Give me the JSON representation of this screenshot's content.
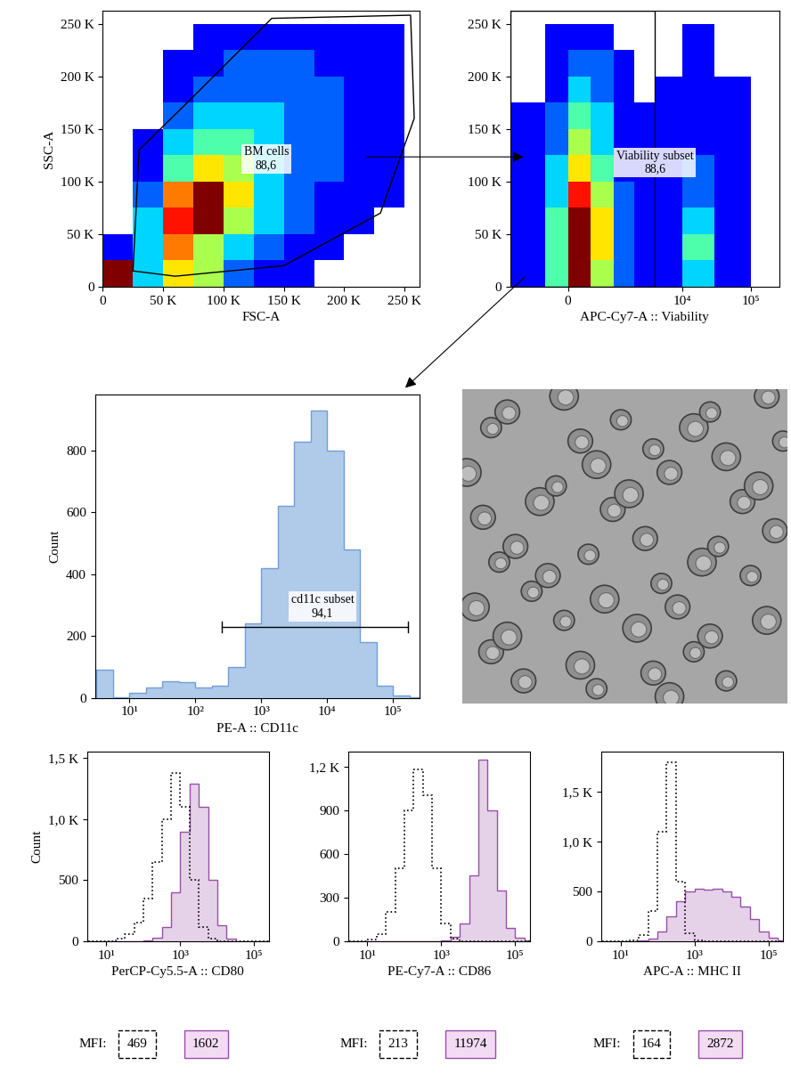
{
  "chart_data": [
    {
      "type": "density_scatter",
      "xlabel": "FSC-A",
      "ylabel": "SSC-A",
      "xlim": [
        0,
        262144
      ],
      "ylim": [
        0,
        262144
      ],
      "xticks": [
        0,
        {
          "value": 50000,
          "label": "50 K"
        },
        {
          "value": 100000,
          "label": "100 K"
        },
        {
          "value": 150000,
          "label": "150 K"
        },
        {
          "value": 200000,
          "label": "200 K"
        },
        {
          "value": 250000,
          "label": "250 K"
        }
      ],
      "yticks": [
        0,
        {
          "value": 50000,
          "label": "50 K"
        },
        {
          "value": 100000,
          "label": "100 K"
        },
        {
          "value": 150000,
          "label": "150 K"
        },
        {
          "value": 200000,
          "label": "200 K"
        },
        {
          "value": 250000,
          "label": "250 K"
        }
      ],
      "density": {
        "x_edges": [
          0,
          25000,
          50000,
          75000,
          100000,
          125000,
          150000,
          175000,
          200000,
          225000,
          250000
        ],
        "y_edges": [
          0,
          25000,
          50000,
          75000,
          100000,
          125000,
          150000,
          175000,
          200000,
          225000,
          250000
        ],
        "cells": [
          [
            9,
            3,
            6,
            5,
            2,
            1,
            1,
            0,
            0,
            0
          ],
          [
            1,
            3,
            7,
            5,
            3,
            2,
            1,
            1,
            0,
            0
          ],
          [
            0,
            3,
            8,
            9,
            5,
            3,
            2,
            1,
            1,
            0
          ],
          [
            0,
            2,
            7,
            9,
            6,
            3,
            2,
            1,
            1,
            1
          ],
          [
            0,
            1,
            4,
            6,
            5,
            3,
            2,
            2,
            1,
            1
          ],
          [
            0,
            1,
            3,
            4,
            4,
            3,
            2,
            2,
            1,
            1
          ],
          [
            0,
            0,
            2,
            3,
            3,
            3,
            2,
            2,
            1,
            1
          ],
          [
            0,
            0,
            1,
            2,
            2,
            2,
            2,
            2,
            1,
            1
          ],
          [
            0,
            0,
            1,
            1,
            2,
            2,
            2,
            1,
            1,
            1
          ],
          [
            0,
            0,
            0,
            1,
            1,
            1,
            1,
            1,
            1,
            1
          ]
        ]
      },
      "gate": {
        "label": "BM cells",
        "percent": {
          "value": 88.6,
          "label": "88,6"
        },
        "polygon": [
          [
            25000,
            15000
          ],
          [
            30000,
            130000
          ],
          [
            70000,
            175000
          ],
          [
            140000,
            255000
          ],
          [
            255000,
            258000
          ],
          [
            258000,
            160000
          ],
          [
            230000,
            70000
          ],
          [
            150000,
            20000
          ],
          [
            60000,
            10000
          ]
        ]
      }
    },
    {
      "type": "density_scatter",
      "xlabel": "APC-Cy7-A :: Viability",
      "log": "x",
      "xlim": [
        -1500,
        262144
      ],
      "ylim": [
        0,
        262144
      ],
      "xticks": [
        0,
        {
          "value": 10000,
          "label": "10⁴"
        },
        {
          "value": 100000,
          "label": "10⁵"
        }
      ],
      "yticks": [
        0,
        {
          "value": 50000,
          "label": "50 K"
        },
        {
          "value": 100000,
          "label": "100 K"
        },
        {
          "value": 150000,
          "label": "150 K"
        },
        {
          "value": 200000,
          "label": "200 K"
        },
        {
          "value": 250000,
          "label": "250 K"
        }
      ],
      "density": {
        "x_edges": [
          -1500,
          -500,
          0,
          500,
          1000,
          2000,
          4000,
          10000,
          30000,
          100000,
          262144
        ],
        "y_edges": [
          0,
          25000,
          50000,
          75000,
          100000,
          125000,
          150000,
          175000,
          200000,
          225000,
          250000
        ],
        "cells": [
          [
            1,
            4,
            9,
            5,
            2,
            1,
            1,
            3,
            1,
            0
          ],
          [
            1,
            4,
            9,
            6,
            2,
            1,
            1,
            4,
            1,
            0
          ],
          [
            1,
            4,
            9,
            6,
            2,
            1,
            1,
            3,
            1,
            0
          ],
          [
            1,
            3,
            8,
            5,
            2,
            1,
            1,
            2,
            1,
            0
          ],
          [
            1,
            3,
            6,
            4,
            1,
            1,
            1,
            2,
            1,
            0
          ],
          [
            1,
            2,
            5,
            3,
            1,
            1,
            1,
            1,
            1,
            0
          ],
          [
            1,
            2,
            4,
            3,
            1,
            1,
            1,
            1,
            1,
            0
          ],
          [
            0,
            1,
            3,
            2,
            1,
            0,
            1,
            1,
            1,
            0
          ],
          [
            0,
            1,
            2,
            2,
            1,
            0,
            0,
            1,
            0,
            0
          ],
          [
            0,
            1,
            1,
            1,
            0,
            0,
            0,
            1,
            0,
            0
          ]
        ]
      },
      "gate": {
        "label": "Viability subset",
        "percent": {
          "value": 88.6,
          "label": "88,6"
        },
        "x_range": [
          -1500,
          4000
        ]
      }
    },
    {
      "type": "histogram",
      "xlabel": "PE-A :: CD11c",
      "ylabel": "Count",
      "log": "x",
      "color": "#6f9fd8",
      "xlim": [
        3,
        250000
      ],
      "ylim": [
        0,
        980
      ],
      "xticks": [
        {
          "value": 10,
          "label": "10¹"
        },
        {
          "value": 100,
          "label": "10²"
        },
        {
          "value": 1000,
          "label": "10³"
        },
        {
          "value": 10000,
          "label": "10⁴"
        },
        {
          "value": 100000,
          "label": "10⁵"
        }
      ],
      "yticks": [
        0,
        200,
        400,
        600,
        800
      ],
      "bins": [
        3.16,
        5.62,
        10,
        17.8,
        31.6,
        56.2,
        100,
        178,
        316,
        562,
        1000,
        1778,
        3162,
        5623,
        10000,
        17783,
        31623,
        56234,
        100000,
        177828,
        316228
      ],
      "values": [
        90,
        3,
        15,
        35,
        55,
        50,
        35,
        40,
        100,
        240,
        420,
        620,
        830,
        930,
        800,
        480,
        180,
        40,
        8,
        2
      ],
      "gate": {
        "label": "cd11c subset",
        "percent": {
          "value": 94.1,
          "label": "94,1"
        },
        "x_range": [
          250,
          170000
        ],
        "y": 230
      }
    },
    {
      "type": "histogram_overlay",
      "xlabel": "PerCP-Cy5.5-A :: CD80",
      "ylabel": "Count",
      "log": "x",
      "mfi_label": "MFI:",
      "xlim": [
        3,
        250000
      ],
      "ylim": [
        0,
        1550
      ],
      "xticks": [
        {
          "value": 10,
          "label": "10¹"
        },
        {
          "value": 1000,
          "label": "10³"
        },
        {
          "value": 100000,
          "label": "10⁵"
        }
      ],
      "yticks": [
        0,
        500,
        {
          "value": 1000,
          "label": "1,0 K"
        },
        {
          "value": 1500,
          "label": "1,5 K"
        }
      ],
      "bins": [
        3.16,
        5.62,
        10,
        17.8,
        31.6,
        56.2,
        100,
        178,
        316,
        562,
        1000,
        1778,
        3162,
        5623,
        10000,
        17783,
        31623,
        56234,
        100000,
        177828,
        316228
      ],
      "series": [
        {
          "color": "#000000",
          "line_style": "dotted",
          "mfi": 469,
          "values": [
            0,
            0,
            0,
            20,
            60,
            150,
            350,
            650,
            1000,
            1380,
            1100,
            500,
            120,
            20,
            0,
            0,
            0,
            0,
            0,
            0
          ]
        },
        {
          "color": "#9b4dab",
          "line_style": "solid",
          "mfi": 1602,
          "values": [
            0,
            0,
            0,
            0,
            0,
            0,
            5,
            30,
            120,
            400,
            900,
            1290,
            1100,
            500,
            130,
            20,
            3,
            0,
            0,
            0
          ]
        }
      ]
    },
    {
      "type": "histogram_overlay",
      "xlabel": "PE-Cy7-A :: CD86",
      "log": "x",
      "mfi_label": "MFI:",
      "xlim": [
        3,
        250000
      ],
      "ylim": [
        0,
        1300
      ],
      "xticks": [
        {
          "value": 10,
          "label": "10¹"
        },
        {
          "value": 1000,
          "label": "10³"
        },
        {
          "value": 100000,
          "label": "10⁵"
        }
      ],
      "yticks": [
        0,
        300,
        600,
        900,
        {
          "value": 1200,
          "label": "1,2 K"
        }
      ],
      "bins": [
        3.16,
        5.62,
        10,
        17.8,
        31.6,
        56.2,
        100,
        178,
        316,
        562,
        1000,
        1778,
        3162,
        5623,
        10000,
        17783,
        31623,
        56234,
        100000,
        177828,
        316228
      ],
      "series": [
        {
          "color": "#000000",
          "line_style": "dotted",
          "mfi": 213,
          "values": [
            0,
            0,
            10,
            50,
            200,
            500,
            900,
            1180,
            1000,
            500,
            120,
            20,
            0,
            0,
            0,
            0,
            0,
            0,
            0,
            0
          ]
        },
        {
          "color": "#9b4dab",
          "line_style": "solid",
          "mfi": 11974,
          "values": [
            0,
            0,
            0,
            0,
            0,
            0,
            0,
            0,
            0,
            0,
            5,
            30,
            120,
            450,
            1250,
            900,
            350,
            90,
            25,
            5
          ]
        }
      ]
    },
    {
      "type": "histogram_overlay",
      "xlabel": "APC-A :: MHC II",
      "log": "x",
      "mfi_label": "MFI:",
      "xlim": [
        3,
        250000
      ],
      "ylim": [
        0,
        1900
      ],
      "xticks": [
        {
          "value": 10,
          "label": "10¹"
        },
        {
          "value": 1000,
          "label": "10³"
        },
        {
          "value": 100000,
          "label": "10⁵"
        }
      ],
      "yticks": [
        0,
        500,
        {
          "value": 1000,
          "label": "1,0 K"
        },
        {
          "value": 1500,
          "label": "1,5 K"
        }
      ],
      "bins": [
        3.16,
        5.62,
        10,
        17.8,
        31.6,
        56.2,
        100,
        178,
        316,
        562,
        1000,
        1778,
        3162,
        5623,
        10000,
        17783,
        31623,
        56234,
        100000,
        177828,
        316228
      ],
      "series": [
        {
          "color": "#000000",
          "line_style": "dotted",
          "mfi": 164,
          "values": [
            0,
            0,
            0,
            10,
            60,
            300,
            1100,
            1800,
            600,
            80,
            10,
            0,
            0,
            0,
            0,
            0,
            0,
            0,
            0,
            0
          ]
        },
        {
          "color": "#9b4dab",
          "line_style": "solid",
          "mfi": 2872,
          "values": [
            0,
            0,
            0,
            0,
            5,
            30,
            100,
            250,
            400,
            500,
            530,
            520,
            530,
            500,
            450,
            350,
            220,
            100,
            40,
            10
          ]
        }
      ]
    }
  ]
}
